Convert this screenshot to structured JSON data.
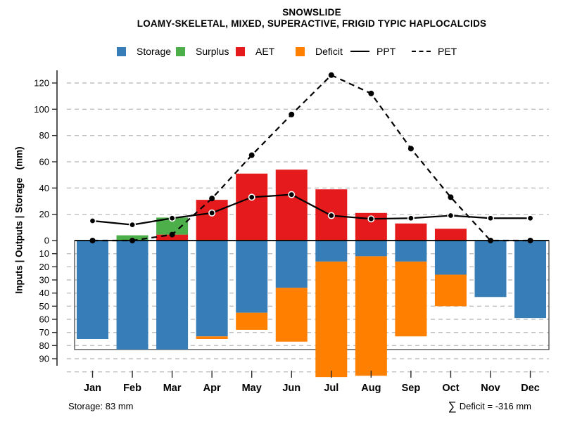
{
  "title": "SNOWSLIDE",
  "subtitle": "LOAMY-SKELETAL, MIXED, SUPERACTIVE, FRIGID TYPIC HAPLOCALCIDS",
  "y_axis_label": "Inputs | Outputs | Storage   (mm)",
  "legend": {
    "position": "top",
    "items": [
      {
        "label": "Storage",
        "type": "box",
        "color": "#377EB8"
      },
      {
        "label": "Surplus",
        "type": "box",
        "color": "#4DAF4A"
      },
      {
        "label": "AET",
        "type": "box",
        "color": "#E41A1C"
      },
      {
        "label": "Deficit",
        "type": "box",
        "color": "#FF7F00"
      },
      {
        "label": "PPT",
        "type": "solid-line",
        "color": "#000000"
      },
      {
        "label": "PET",
        "type": "dashed-line",
        "color": "#000000"
      }
    ]
  },
  "footer": {
    "storage_note": "Storage: 83 mm",
    "deficit_sigma": "∑",
    "deficit_note": "Deficit = -316 mm"
  },
  "chart_data": {
    "type": "bar",
    "subtype": "water-balance combo (stacked bars above/below zero + two lines)",
    "categories": [
      "Jan",
      "Feb",
      "Mar",
      "Apr",
      "May",
      "Jun",
      "Jul",
      "Aug",
      "Sep",
      "Oct",
      "Nov",
      "Dec"
    ],
    "units": "mm",
    "series": [
      {
        "name": "AET",
        "role": "bar-above-zero",
        "color": "#E41A1C",
        "values": [
          0,
          0,
          4.5,
          31,
          51,
          54,
          39,
          21,
          13,
          9,
          0,
          0
        ]
      },
      {
        "name": "Surplus",
        "role": "bar-above-stacked-on-AET",
        "color": "#4DAF4A",
        "values": [
          0,
          4,
          13,
          0,
          0,
          0,
          0,
          0,
          0,
          0,
          0,
          0
        ]
      },
      {
        "name": "Storage",
        "role": "bar-below-zero",
        "color": "#377EB8",
        "values": [
          75,
          83,
          83,
          73,
          55,
          36,
          16,
          12,
          16,
          26,
          43,
          59
        ]
      },
      {
        "name": "Deficit",
        "role": "bar-below-stacked-on-Storage",
        "color": "#FF7F00",
        "values": [
          0,
          0,
          0,
          2,
          13,
          41,
          88,
          91,
          57,
          24,
          0,
          0
        ]
      },
      {
        "name": "PPT",
        "role": "line-solid",
        "color": "#000000",
        "values": [
          15,
          12,
          17,
          21,
          33,
          35,
          19,
          16.5,
          17,
          19,
          17,
          17
        ]
      },
      {
        "name": "PET",
        "role": "line-dashed",
        "color": "#000000",
        "values": [
          0,
          0,
          4.5,
          32,
          65,
          96,
          126,
          112,
          70,
          33,
          0,
          0
        ]
      }
    ],
    "y_upper_ticks": [
      0,
      20,
      40,
      60,
      80,
      100,
      120
    ],
    "y_lower_ticks": [
      10,
      20,
      30,
      40,
      50,
      60,
      70,
      80,
      90
    ],
    "y_lower_gridlines": [
      10,
      20,
      30,
      40,
      50,
      60,
      70,
      80,
      90,
      100
    ],
    "grid": "dashed",
    "storage_capacity_mm": 83,
    "deficit_total_mm": -316,
    "ylabel": "Inputs | Outputs | Storage (mm)",
    "xlabel": ""
  }
}
